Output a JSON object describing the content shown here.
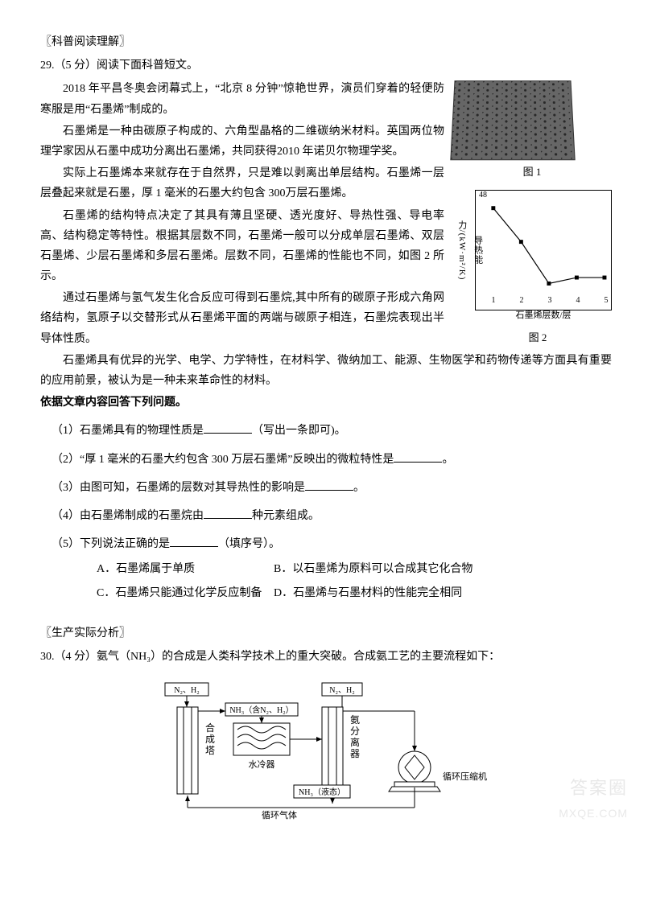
{
  "section1": {
    "title": "〖科普阅读理解〗",
    "q_header": "29.（5 分）阅读下面科普短文。",
    "p1": "2018 年平昌冬奥会闭幕式上，“北京 8 分钟”惊艳世界，演员们穿着的轻便防寒服是用“石墨烯”制成的。",
    "p2": "石墨烯是一种由碳原子构成的、六角型晶格的二维碳纳米材料。英国两位物理学家因从石墨中成功分离出石墨烯，共同获得2010 年诺贝尔物理学奖。",
    "p3": "实际上石墨烯本来就存在于自然界，只是难以剥离出单层结构。石墨烯一层层叠起来就是石墨，厚 1 毫米的石墨大约包含 300万层石墨烯。",
    "p4": "石墨烯的结构特点决定了其具有薄且坚硬、透光度好、导热性强、导电率高、结构稳定等特性。根据其层数不同，石墨烯一般可以分成单层石墨烯、双层石墨烯、少层石墨烯和多层石墨烯。层数不同，石墨烯的性能也不同，如图 2 所示。",
    "p5": "通过石墨烯与氢气发生化合反应可得到石墨烷,其中所有的碳原子形成六角网络结构，氢原子以交替形式从石墨烯平面的两端与碳原子相连，石墨烷表现出半导体性质。",
    "p6": "石墨烯具有优异的光学、电学、力学特性，在材料学、微纳加工、能源、生物医学和药物传递等方面具有重要的应用前景，被认为是一种未来革命性的材料。",
    "instruction": "依据文章内容回答下列问题。",
    "fig1_caption": "图 1",
    "fig2_caption": "图 2",
    "chart": {
      "ylabel": "导热能力/(kW·m²/K)",
      "xlabel": "石墨烯层数/层",
      "ylim": [
        0,
        48
      ],
      "xticks": [
        1,
        2,
        3,
        4,
        5
      ],
      "yticks": [
        0,
        5,
        10,
        15,
        20,
        25,
        30,
        35,
        40,
        45
      ],
      "ytop_label": "48",
      "points": [
        {
          "x": 1,
          "y": 44
        },
        {
          "x": 2,
          "y": 27
        },
        {
          "x": 3,
          "y": 6
        },
        {
          "x": 4,
          "y": 9
        },
        {
          "x": 5,
          "y": 9
        }
      ],
      "border_color": "#000000",
      "line_color": "#000000",
      "marker_fill": "#000000",
      "background": "#ffffff"
    },
    "subq": {
      "q1": "（1）石墨烯具有的物理性质是",
      "q1_tail": "（写出一条即可)。",
      "q2": "（2）“厚 1 毫米的石墨大约包含 300 万层石墨烯”反映出的微粒特性是",
      "q2_tail": "。",
      "q3": "（3）由图可知，石墨烯的层数对其导热性的影响是",
      "q3_tail": "。",
      "q4": "（4）由石墨烯制成的石墨烷由",
      "q4_tail": "种元素组成。",
      "q5": "（5）下列说法正确的是",
      "q5_tail": "（填序号）。",
      "options": {
        "A": "A．石墨烯属于单质",
        "B": "B．以石墨烯为原料可以合成其它化合物",
        "C": "C．石墨烯只能通过化学反应制备",
        "D": "D．石墨烯与石墨材料的性能完全相同"
      }
    }
  },
  "section2": {
    "title": "〖生产实际分析〗",
    "q_header": "30.（4 分）氨气（NH₃）的合成是人类科学技术上的重大突破。合成氨工艺的主要流程如下：",
    "diagram": {
      "labels": {
        "input1": "N₂、H₂",
        "tower": "合成塔",
        "mid_gas": "NH₃（含N₂、H₂）",
        "cooler": "水冷器",
        "input2": "N₂、H₂",
        "separator": "氨分离器",
        "liquid": "NH₃（液态）",
        "compressor": "循环压缩机",
        "recycle": "循环气体"
      },
      "stroke": "#000000",
      "fill": "#ffffff"
    }
  },
  "watermark": {
    "w1": "答案圈",
    "w2": "MXQE.COM"
  }
}
